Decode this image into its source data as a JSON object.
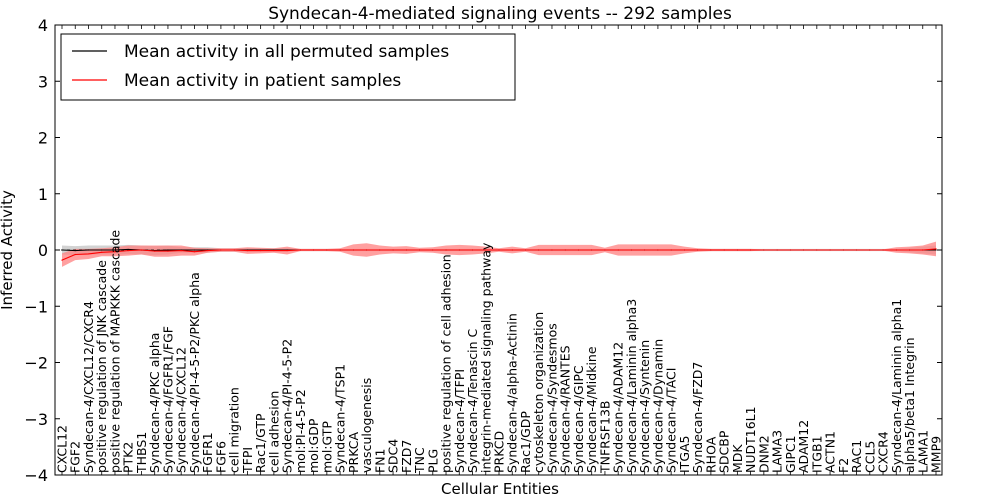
{
  "chart_data": {
    "type": "line",
    "title": "Syndecan-4-mediated signaling events -- 292 samples",
    "xlabel": "Cellular Entities",
    "ylabel": "Inferred Activity",
    "ylim": [
      -4,
      4
    ],
    "yticks": [
      4,
      3,
      2,
      1,
      0,
      -1,
      -2,
      -3,
      -4
    ],
    "ytick_labels": [
      "4",
      "3",
      "2",
      "1",
      "0",
      "−1",
      "−2",
      "−3",
      "−4"
    ],
    "legend_position": "top-left",
    "categories": [
      "CXCL12",
      "FGF2",
      "Syndecan-4/CXCL12/CXCR4",
      "positive regulation of JNK cascade",
      "positive regulation of MAPKKK cascade",
      "PTK2",
      "THBS1",
      "Syndecan-4/PKC alpha",
      "Syndecan-4/FGFR1/FGF",
      "Syndecan-4/CXCL12",
      "Syndecan-4/PI-4-5-P2/PKC alpha",
      "FGFR1",
      "FGF6",
      "cell migration",
      "TFPI",
      "Rac1/GTP",
      "cell adhesion",
      "Syndecan-4/PI-4-5-P2",
      "mol:PI-4-5-P2",
      "mol:GDP",
      "mol:GTP",
      "Syndecan-4/TSP1",
      "PRKCA",
      "vasculogenesis",
      "FN1",
      "SDC4",
      "FZD7",
      "TNC",
      "PLG",
      "positive regulation of cell adhesion",
      "Syndecan-4/TFPI",
      "Syndecan-4/Tenascin C",
      "integrin-mediated signaling pathway",
      "PRKCD",
      "Syndecan-4/alpha-Actinin",
      "Rac1/GDP",
      "cytoskeleton organization",
      "Syndecan-4/Syndesmos",
      "Syndecan-4/RANTES",
      "Syndecan-4/GIPC",
      "Syndecan-4/Midkine",
      "TNFRSF13B",
      "Syndecan-4/ADAM12",
      "Syndecan-4/Laminin alpha3",
      "Syndecan-4/Syntenin",
      "Syndecan-4/Dynamin",
      "Syndecan-4/TACI",
      "ITGA5",
      "Syndecan-4/FZD7",
      "RHOA",
      "SDCBP",
      "MDK",
      "NUDT16L1",
      "DNM2",
      "LAMA3",
      "GIPC1",
      "ADAM12",
      "ITGB1",
      "ACTN1",
      "F2",
      "RAC1",
      "CCL5",
      "CXCR4",
      "Syndecan-4/Laminin alpha1",
      "alpha5/beta1 Integrin",
      "LAMA1",
      "MMP9"
    ],
    "series": [
      {
        "name": "Mean activity in all permuted samples",
        "color": "#000000",
        "band_color": "#bfbfbf",
        "values": [
          0,
          -0.01,
          0,
          0,
          0,
          0.01,
          0,
          -0.01,
          0,
          0,
          0,
          0,
          0,
          0,
          0,
          0,
          0,
          0,
          0,
          0,
          0,
          0,
          0,
          0,
          0,
          0,
          0,
          0,
          0,
          0,
          0,
          0,
          0,
          0,
          0,
          0,
          0,
          0,
          0,
          0,
          0,
          0,
          0,
          0,
          0,
          0,
          0,
          0,
          0,
          0,
          0,
          0,
          0,
          0,
          0,
          0,
          0,
          0,
          0,
          0,
          0,
          0,
          0,
          0,
          0,
          0,
          0
        ],
        "band_halfwidth": [
          0.08,
          0.08,
          0.08,
          0.08,
          0.08,
          0.08,
          0.08,
          0.08,
          0.08,
          0.05,
          0.05,
          0.05,
          0.03,
          0.03,
          0.03,
          0.03,
          0.03,
          0.03,
          0.02,
          0.02,
          0.02,
          0.02,
          0.02,
          0.02,
          0.02,
          0.02,
          0.02,
          0.02,
          0.02,
          0.02,
          0.02,
          0.02,
          0.02,
          0.02,
          0.02,
          0.02,
          0.02,
          0.02,
          0.02,
          0.02,
          0.02,
          0.02,
          0.02,
          0.02,
          0.02,
          0.02,
          0.02,
          0.02,
          0.02,
          0.02,
          0.02,
          0.02,
          0.02,
          0.02,
          0.02,
          0.02,
          0.02,
          0.02,
          0.02,
          0.02,
          0.02,
          0.02,
          0.02,
          0.02,
          0.04,
          0.06,
          0.08
        ]
      },
      {
        "name": "Mean activity in patient samples",
        "color": "#ff0000",
        "band_color": "#ff8080",
        "values": [
          -0.18,
          -0.08,
          -0.07,
          -0.04,
          -0.03,
          -0.01,
          0,
          -0.02,
          -0.02,
          -0.01,
          -0.03,
          -0.01,
          0,
          0,
          -0.01,
          -0.01,
          -0.01,
          -0.01,
          0,
          0,
          0,
          0,
          0,
          0,
          0,
          0,
          0,
          0,
          0,
          0,
          0,
          0,
          0,
          0,
          0,
          0,
          0,
          0,
          0,
          0,
          0,
          0,
          0,
          0,
          0,
          0,
          0,
          0,
          0,
          0,
          0,
          0,
          0,
          0,
          0,
          0,
          0,
          0,
          0,
          0,
          0,
          0,
          0,
          0,
          0,
          0,
          0.02
        ],
        "band_halfwidth": [
          0.12,
          0.1,
          0.09,
          0.07,
          0.08,
          0.09,
          0.08,
          0.1,
          0.1,
          0.09,
          0.07,
          0.04,
          0.03,
          0.03,
          0.06,
          0.05,
          0.04,
          0.07,
          0.02,
          0.02,
          0.02,
          0.03,
          0.1,
          0.12,
          0.08,
          0.06,
          0.07,
          0.04,
          0.05,
          0.08,
          0.09,
          0.08,
          0.06,
          0.03,
          0.06,
          0.03,
          0.09,
          0.09,
          0.09,
          0.09,
          0.09,
          0.04,
          0.1,
          0.1,
          0.1,
          0.1,
          0.1,
          0.06,
          0.03,
          0.02,
          0.02,
          0.02,
          0.02,
          0.01,
          0.01,
          0.01,
          0.01,
          0.01,
          0.01,
          0.01,
          0.01,
          0.01,
          0.01,
          0.05,
          0.06,
          0.08,
          0.13
        ]
      }
    ]
  }
}
